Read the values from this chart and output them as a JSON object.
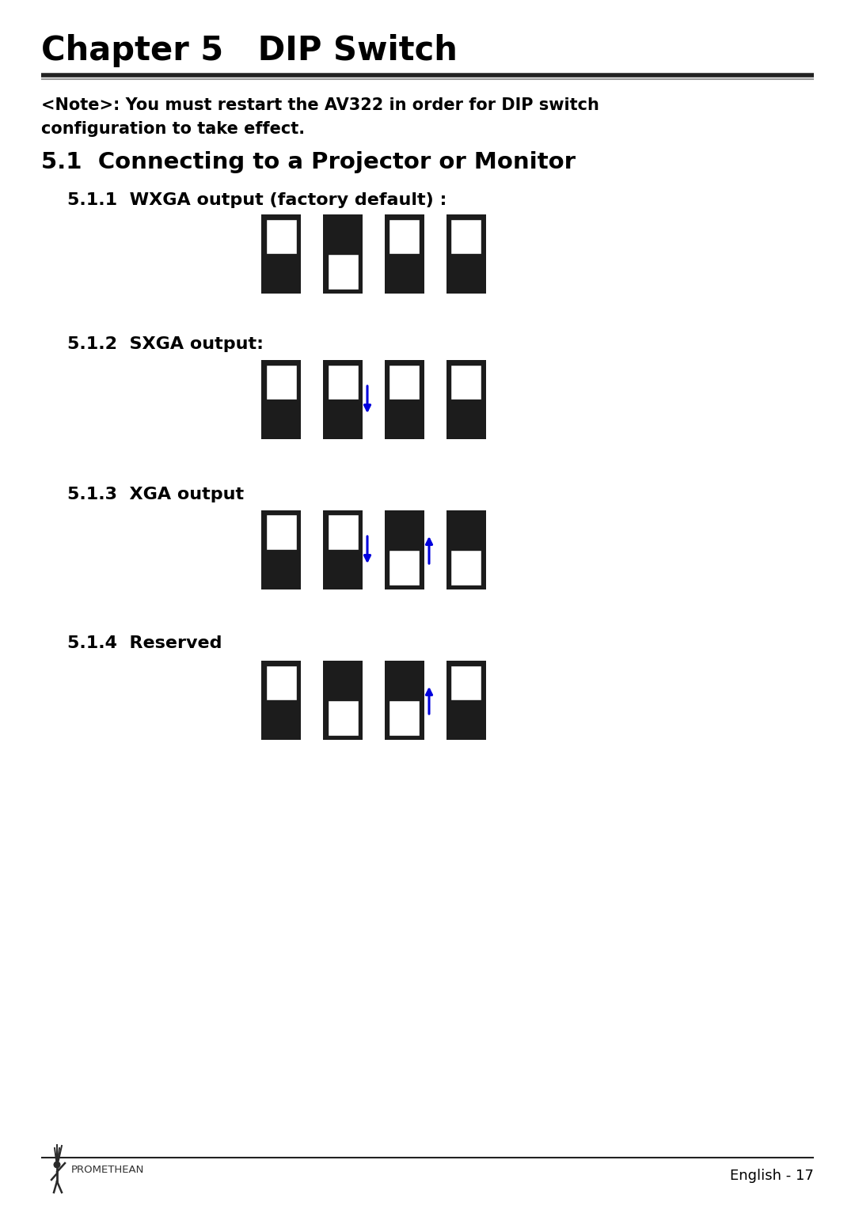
{
  "title": "Chapter 5   DIP Switch",
  "note_text": "<Note>: You must restart the AV322 in order for DIP switch\nconfiguration to take effect.",
  "section_title": "5.1  Connecting to a Projector or Monitor",
  "subsections": [
    {
      "label": "5.1.1  WXGA output (factory default) :",
      "switches": [
        1,
        0,
        1,
        1
      ],
      "arrows": []
    },
    {
      "label": "5.1.2  SXGA output:",
      "switches": [
        1,
        1,
        1,
        1
      ],
      "arrows": [
        {
          "switch": 1,
          "direction": "down"
        }
      ]
    },
    {
      "label": "5.1.3  XGA output",
      "switches": [
        1,
        1,
        0,
        0
      ],
      "arrows": [
        {
          "switch": 1,
          "direction": "down"
        },
        {
          "switch": 2,
          "direction": "up"
        }
      ]
    },
    {
      "label": "5.1.4  Reserved",
      "switches": [
        1,
        0,
        0,
        1
      ],
      "arrows": [
        {
          "switch": 2,
          "direction": "up"
        }
      ]
    }
  ],
  "bg_color": "#ffffff",
  "text_color": "#000000",
  "switch_dark": "#1c1c1c",
  "switch_light": "#ffffff",
  "arrow_color": "#0000dd",
  "footer_text": "English - 17",
  "title_fontsize": 30,
  "note_fontsize": 15,
  "section_fontsize": 21,
  "sub_fontsize": 16
}
